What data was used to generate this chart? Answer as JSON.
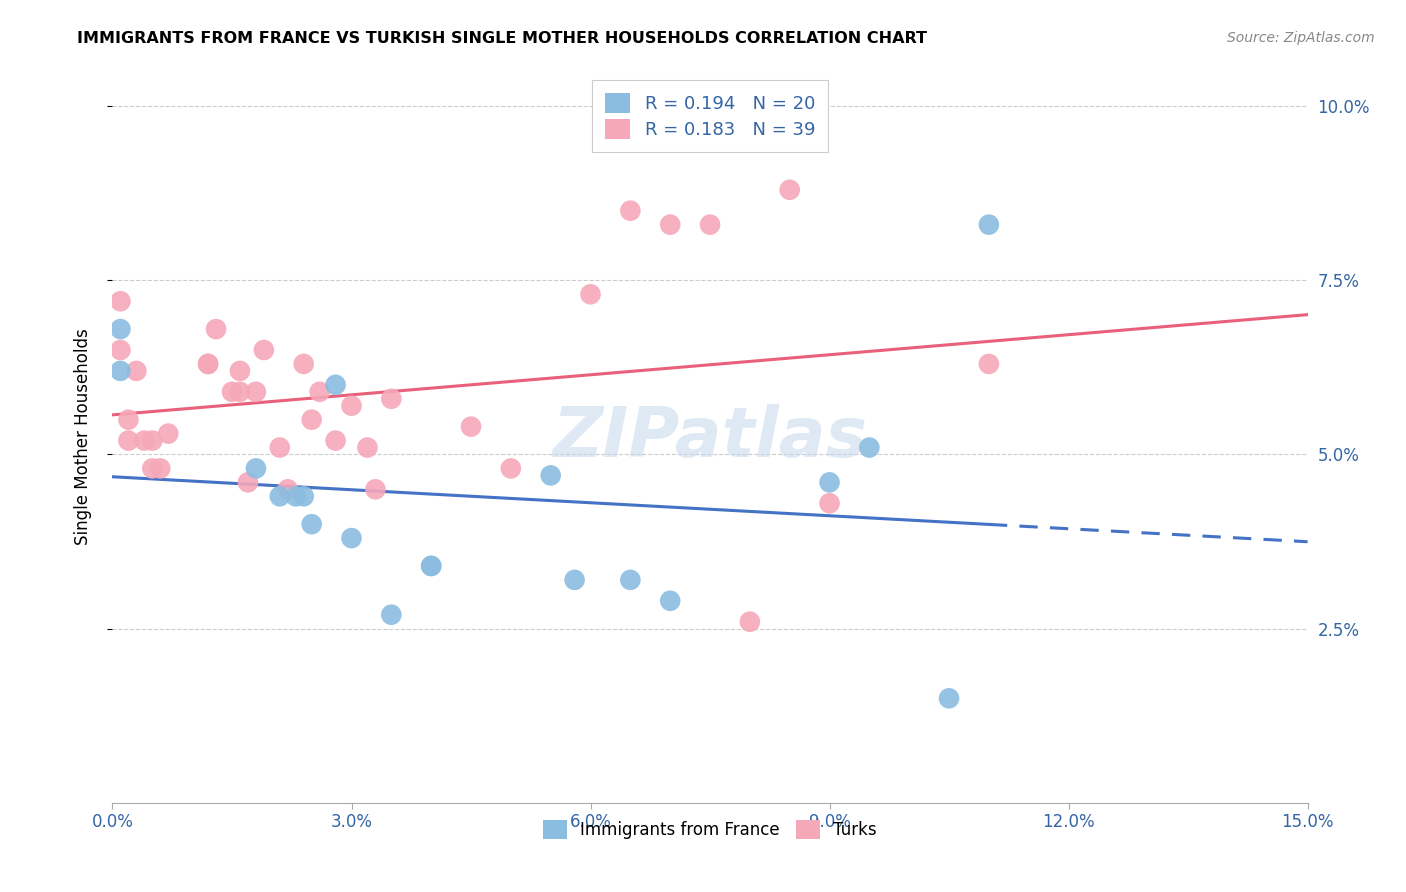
{
  "title": "IMMIGRANTS FROM FRANCE VS TURKISH SINGLE MOTHER HOUSEHOLDS CORRELATION CHART",
  "source": "Source: ZipAtlas.com",
  "ylabel_label": "Single Mother Households",
  "xlim": [
    0.0,
    0.15
  ],
  "ylim": [
    0.0,
    0.105
  ],
  "xticks": [
    0.0,
    0.03,
    0.06,
    0.09,
    0.12,
    0.15
  ],
  "yticks": [
    0.025,
    0.05,
    0.075,
    0.1
  ],
  "ytick_labels": [
    "2.5%",
    "5.0%",
    "7.5%",
    "10.0%"
  ],
  "xtick_labels": [
    "0.0%",
    "3.0%",
    "6.0%",
    "9.0%",
    "12.0%",
    "15.0%"
  ],
  "france_color": "#8bbde0",
  "turks_color": "#f5a8b8",
  "france_line_color": "#4472c4",
  "turks_line_color": "#e8607a",
  "france_R": 0.194,
  "france_N": 20,
  "turks_R": 0.183,
  "turks_N": 39,
  "watermark": "ZIPatlas",
  "france_x": [
    0.001,
    0.001,
    0.018,
    0.021,
    0.023,
    0.024,
    0.025,
    0.028,
    0.035,
    0.04,
    0.04,
    0.055,
    0.058,
    0.065,
    0.07,
    0.09,
    0.095,
    0.105,
    0.11,
    0.03
  ],
  "france_y": [
    0.068,
    0.062,
    0.048,
    0.044,
    0.044,
    0.044,
    0.04,
    0.06,
    0.027,
    0.034,
    0.034,
    0.047,
    0.032,
    0.032,
    0.029,
    0.046,
    0.051,
    0.015,
    0.083,
    0.038
  ],
  "turks_x": [
    0.001,
    0.001,
    0.002,
    0.002,
    0.003,
    0.004,
    0.005,
    0.005,
    0.006,
    0.007,
    0.012,
    0.012,
    0.013,
    0.015,
    0.016,
    0.016,
    0.017,
    0.018,
    0.019,
    0.021,
    0.022,
    0.024,
    0.025,
    0.026,
    0.028,
    0.03,
    0.032,
    0.033,
    0.035,
    0.045,
    0.05,
    0.06,
    0.065,
    0.07,
    0.075,
    0.08,
    0.085,
    0.09,
    0.11
  ],
  "turks_y": [
    0.072,
    0.065,
    0.055,
    0.052,
    0.062,
    0.052,
    0.048,
    0.052,
    0.048,
    0.053,
    0.063,
    0.063,
    0.068,
    0.059,
    0.059,
    0.062,
    0.046,
    0.059,
    0.065,
    0.051,
    0.045,
    0.063,
    0.055,
    0.059,
    0.052,
    0.057,
    0.051,
    0.045,
    0.058,
    0.054,
    0.048,
    0.073,
    0.085,
    0.083,
    0.083,
    0.026,
    0.088,
    0.043,
    0.063
  ]
}
